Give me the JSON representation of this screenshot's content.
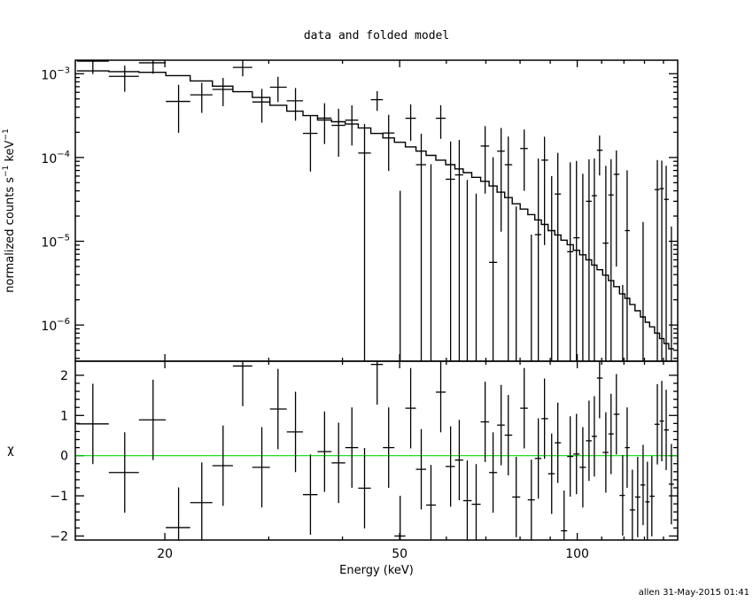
{
  "chart_data": [
    {
      "type": "scatter",
      "panel": "top",
      "title": "data and folded model",
      "ylabel": {
        "text": "normalized counts s",
        "exp1": "−1",
        "unit": " keV",
        "exp2": "−1"
      },
      "x_scale": "log",
      "y_scale": "log",
      "xlim": [
        14.1,
        148
      ],
      "ylim": [
        3.7e-07,
        0.00145
      ],
      "y_ticks": [
        {
          "value": 0.001,
          "base": "10",
          "exp": "−3"
        },
        {
          "value": 0.0001,
          "base": "10",
          "exp": "−4"
        },
        {
          "value": 1e-05,
          "base": "10",
          "exp": "−5"
        },
        {
          "value": 1e-06,
          "base": "10",
          "exp": "−6"
        }
      ],
      "grid": false,
      "series": [
        {
          "style": "crosses (data with error bars)"
        },
        {
          "style": "histogram step line (folded model)"
        }
      ]
    },
    {
      "type": "scatter",
      "panel": "bottom",
      "xlabel": "Energy (keV)",
      "ylabel": "χ",
      "x_scale": "log",
      "xlim": [
        14.1,
        148
      ],
      "ylim": [
        -2.1,
        2.35
      ],
      "x_ticks": [
        {
          "value": 20,
          "label": "20"
        },
        {
          "value": 50,
          "label": "50"
        },
        {
          "value": 100,
          "label": "100"
        }
      ],
      "y_ticks": [
        {
          "value": 2,
          "label": "2"
        },
        {
          "value": 1,
          "label": "1"
        },
        {
          "value": 0,
          "label": "0"
        },
        {
          "value": -1,
          "label": "−1"
        },
        {
          "value": -2,
          "label": "−2"
        }
      ],
      "reference_line": {
        "y": 0,
        "color": "#00dd00"
      },
      "grid": false
    }
  ],
  "bins": {
    "energy_keV": [
      15.1,
      17.1,
      19.1,
      21.1,
      23.1,
      25.1,
      27.1,
      29.2,
      31.1,
      33.3,
      35.3,
      37.3,
      39.4,
      41.5,
      43.6,
      45.8,
      47.9,
      50.1,
      52.2,
      54.4,
      56.5,
      58.7,
      61.0,
      63.1,
      65.1,
      67.4,
      69.8,
      72.0,
      74.3,
      76.4,
      78.8,
      81.3,
      83.6,
      85.9,
      88.0,
      90.5,
      92.7,
      95.0,
      97.3,
      99.7,
      102.2,
      104.7,
      106.9,
      109.1,
      111.8,
      114.1,
      116.5,
      119.4,
      121.5,
      124.0,
      126.6,
      129.3,
      131.5,
      133.8,
      136.7,
      139.1,
      141.5,
      144.4
    ],
    "rate": [
      0.00141,
      0.00093,
      0.00135,
      0.000467,
      0.00056,
      0.00065,
      0.00119,
      0.00046,
      0.00069,
      0.000475,
      0.000194,
      0.000295,
      0.000242,
      0.000279,
      0.000113,
      0.00049,
      0.000196,
      -7.2e-05,
      0.000294,
      8.2e-05,
      -1.7e-05,
      0.000294,
      5.5e-05,
      6.2e-05,
      -4.6e-05,
      -6.3e-05,
      0.000137,
      5.6e-06,
      0.000119,
      8.2e-05,
      -6.9e-05,
      0.000128,
      -7.8e-05,
      1.2e-05,
      9.3e-05,
      -2.5e-05,
      3.66e-05,
      -0.000139,
      7.5e-06,
      1.1e-05,
      -1.6e-05,
      3e-05,
      3.5e-05,
      0.000122,
      9.5e-06,
      3.57e-05,
      6.3e-05,
      -5.7e-05,
      1.34e-05,
      -7.9e-05,
      -6e-05,
      -4.3e-05,
      -6.8e-05,
      -6e-05,
      4.14e-05,
      4.25e-05,
      3.16e-05,
      -3.5e-05
    ],
    "error": [
      0.00042,
      0.00032,
      0.00035,
      0.00027,
      0.00022,
      0.00024,
      0.00026,
      0.0002,
      0.00023,
      0.0002,
      0.000126,
      0.00015,
      0.00014,
      0.00014,
      0.000138,
      0.00013,
      0.000127,
      0.000112,
      0.000136,
      0.00011,
      0.0001,
      0.000127,
      0.0001,
      0.0001,
      0.0001,
      0.0001,
      0.0001,
      9.5e-05,
      0.000106,
      9.6e-05,
      9.5e-05,
      8.8e-05,
      9e-05,
      8.5e-05,
      8.4e-05,
      8.5e-05,
      7.7e-05,
      8e-05,
      8e-05,
      8e-05,
      8e-05,
      6.5e-05,
      6.2e-05,
      6.1e-05,
      7e-05,
      6e-05,
      5.8e-05,
      6e-05,
      5.7e-05,
      6e-05,
      6e-05,
      6e-05,
      6e-05,
      6e-05,
      5.2e-05,
      4.9e-05,
      4.8e-05,
      5e-05
    ],
    "model": [
      0.00108,
      0.00106,
      0.00104,
      0.00095,
      0.00082,
      0.00071,
      0.00061,
      0.00052,
      0.00042,
      0.000357,
      0.000316,
      0.00028,
      0.000267,
      0.000251,
      0.000225,
      0.000194,
      0.000171,
      0.000152,
      0.000134,
      0.000119,
      0.000106,
      9.3e-05,
      8.2e-05,
      7.3e-05,
      6.6e-05,
      5.8e-05,
      5.2e-05,
      4.57e-05,
      3.85e-05,
      3.32e-05,
      2.8e-05,
      2.42e-05,
      2.08e-05,
      1.8e-05,
      1.59e-05,
      1.34e-05,
      1.19e-05,
      1.03e-05,
      9.1e-06,
      7.8e-06,
      6.9e-06,
      6e-06,
      5.2e-06,
      4.57e-06,
      3.94e-06,
      3.4e-06,
      2.87e-06,
      2.36e-06,
      2.08e-06,
      1.76e-06,
      1.48e-06,
      1.25e-06,
      1.08e-06,
      9.5e-07,
      8e-07,
      6.9e-07,
      6e-07,
      5.2e-07
    ],
    "chi": [
      0.79,
      -0.42,
      0.89,
      -1.79,
      -1.17,
      -0.25,
      2.23,
      -0.29,
      1.16,
      0.59,
      -0.97,
      0.1,
      -0.18,
      0.2,
      -0.81,
      2.27,
      0.2,
      -2.0,
      1.18,
      -0.34,
      -1.23,
      1.58,
      -0.27,
      -0.11,
      -1.12,
      -1.21,
      0.84,
      -0.42,
      0.76,
      0.51,
      -1.03,
      1.18,
      -1.1,
      -0.07,
      0.92,
      -0.45,
      0.32,
      -1.87,
      -0.02,
      0.04,
      -0.29,
      0.37,
      0.48,
      1.93,
      0.08,
      0.54,
      1.03,
      -0.99,
      0.2,
      -1.35,
      -1.03,
      -0.73,
      -1.15,
      -1.01,
      0.78,
      0.86,
      0.64,
      -0.71
    ]
  },
  "colors": {
    "data": "#000000",
    "model": "#000000",
    "zero_line": "#00dd00",
    "background": "#ffffff"
  },
  "footer": "allen 31-May-2015 01:41"
}
